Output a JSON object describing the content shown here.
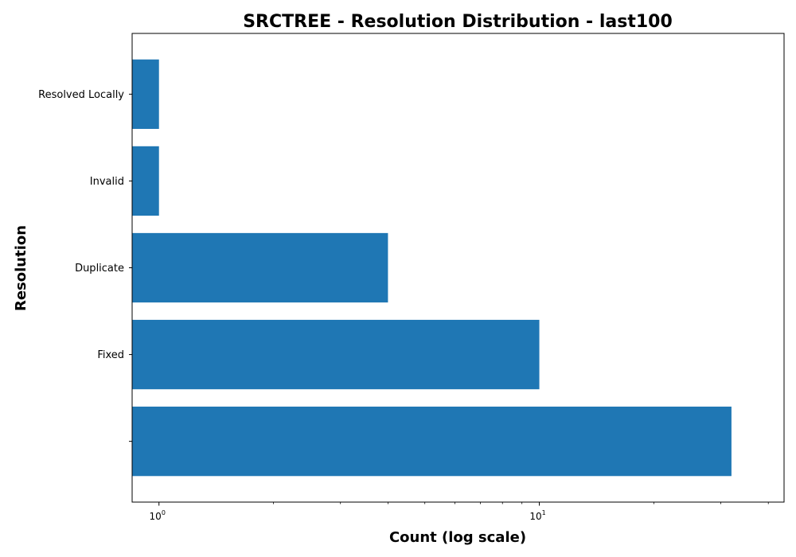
{
  "chart_data": {
    "type": "bar",
    "orientation": "horizontal",
    "title": "SRCTREE - Resolution Distribution - last100",
    "xlabel": "Count (log scale)",
    "ylabel": "Resolution",
    "x_scale": "log",
    "xlim": [
      0.85,
      44
    ],
    "x_ticks": [
      {
        "value": 1,
        "base": "10",
        "exp": "0"
      },
      {
        "value": 10,
        "base": "10",
        "exp": "1"
      }
    ],
    "x_minor_ticks": [
      2,
      3,
      4,
      5,
      6,
      7,
      8,
      9,
      20,
      30,
      40
    ],
    "categories": [
      "",
      "Fixed",
      "Duplicate",
      "Invalid",
      "Resolved Locally"
    ],
    "values": [
      32,
      10,
      4,
      1,
      1
    ],
    "bar_color": "#1f77b4",
    "grid": false,
    "legend": "none"
  }
}
